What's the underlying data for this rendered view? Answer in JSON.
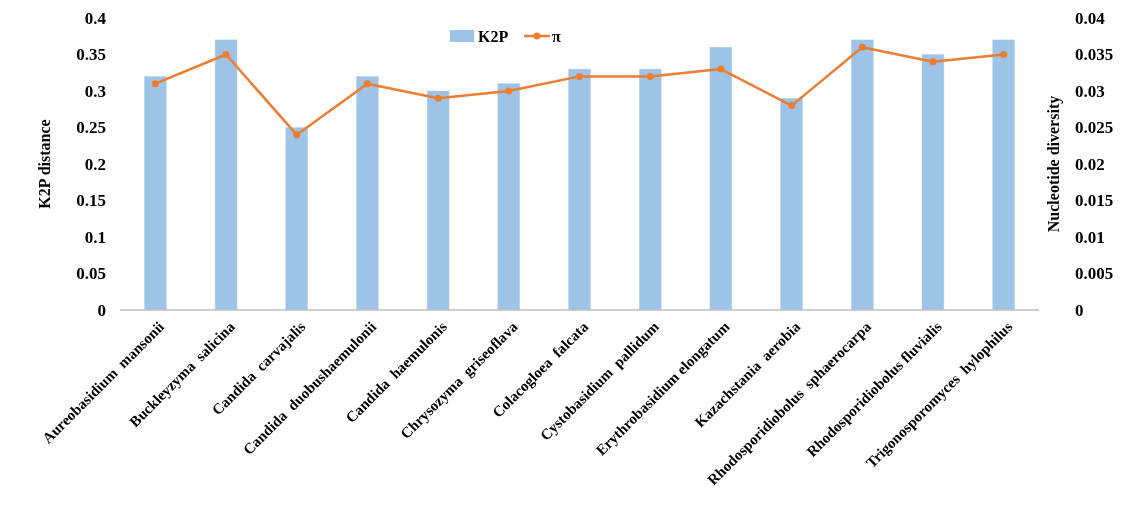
{
  "chart_data": {
    "type": "bar",
    "categories": [
      "Aureobasidium  mansonii",
      "Buckleyzyma  salicina",
      "Candida  carvajalis",
      "Candida  duobushaemulonii",
      "Candida  haemulonis",
      "Chrysozyma  griseoflava",
      "Colacogloea  falcata",
      "Cystobasidium  pallidum",
      "Erythrobasidium elongatum",
      "Kazachstania  aerobia",
      "Rhodosporidiobolus  sphaerocarpa",
      "Rhodosporidiobolus fluvialis",
      "Trigonosporomyces  hylophilus"
    ],
    "series": [
      {
        "name": "K2P",
        "color": "#9dc3e6",
        "values": [
          0.32,
          0.37,
          0.25,
          0.32,
          0.3,
          0.31,
          0.33,
          0.33,
          0.36,
          0.29,
          0.37,
          0.35,
          0.37
        ]
      },
      {
        "name": "π",
        "type": "line",
        "axis": "y2",
        "color": "#ed7d31",
        "marker": "circle",
        "values": [
          0.031,
          0.035,
          0.024,
          0.031,
          0.029,
          0.03,
          0.032,
          0.032,
          0.033,
          0.028,
          0.036,
          0.034,
          0.035
        ]
      }
    ],
    "ylabel": "K2P distance",
    "y2label": "Nucleotide diversity",
    "ylim": [
      0,
      0.4
    ],
    "yticks": [
      0,
      0.05,
      0.1,
      0.15,
      0.2,
      0.25,
      0.3,
      0.35,
      0.4
    ],
    "y2lim": [
      0,
      0.04
    ],
    "y2ticks": [
      0,
      0.005,
      0.01,
      0.015,
      0.02,
      0.025,
      0.03,
      0.035,
      0.04
    ],
    "grid": false,
    "legend": "top"
  }
}
